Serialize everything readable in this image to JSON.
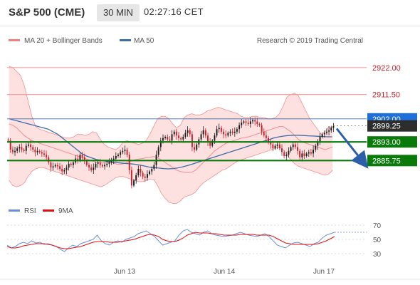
{
  "header": {
    "title": "S&P 500 (CME)",
    "timeframe": "30 MIN",
    "time": "02:27:16 CET"
  },
  "legend": {
    "bollinger": "MA 20 + Bollinger Bands",
    "ma50": "MA 50",
    "copyright": "Research © 2019 Trading Central",
    "rsi": "RSI",
    "rsi_ma": "9MA"
  },
  "colors": {
    "up": "#1a1a1a",
    "down": "#c8212b",
    "bollinger": "#f08080",
    "band_fill": "#fde0e0",
    "ma50": "#3d6ca8",
    "support_line": "#0a7a0a",
    "resistance_line": "#f2a0a0",
    "current_price_bg": "#2d2d2d",
    "pivot_bg": "#1e6fd9",
    "arrow": "#2c5fa8",
    "rsi_line": "#6b8fd6",
    "rsi_ma_line": "#e01010"
  },
  "chart_data": [
    {
      "type": "candlestick",
      "y_range": [
        2870,
        2930
      ],
      "x_ticks": [
        "Jun 13",
        "Jun 14",
        "Jun 17"
      ],
      "price_levels": [
        {
          "label": "2922.00",
          "value": 2922.0,
          "kind": "resistance"
        },
        {
          "label": "2911.50",
          "value": 2911.5,
          "kind": "resistance"
        },
        {
          "label": "2902.00",
          "value": 2902.0,
          "kind": "pivot"
        },
        {
          "label": "2899.25",
          "value": 2899.25,
          "kind": "last"
        },
        {
          "label": "2893.00",
          "value": 2893.0,
          "kind": "support"
        },
        {
          "label": "2885.75",
          "value": 2885.75,
          "kind": "support"
        }
      ],
      "closes": [
        2893.5,
        2890.0,
        2889.0,
        2889.5,
        2890.5,
        2891.0,
        2890.0,
        2889.5,
        2891.5,
        2892.0,
        2891.0,
        2890.0,
        2889.0,
        2889.5,
        2889.0,
        2888.5,
        2888.0,
        2887.0,
        2885.0,
        2883.0,
        2883.5,
        2884.0,
        2883.5,
        2882.5,
        2881.5,
        2882.0,
        2883.0,
        2884.5,
        2884.0,
        2885.0,
        2886.5,
        2886.0,
        2888.0,
        2887.0,
        2885.5,
        2884.0,
        2883.0,
        2882.0,
        2883.0,
        2884.5,
        2885.0,
        2884.0,
        2883.5,
        2884.0,
        2884.5,
        2885.0,
        2886.0,
        2886.5,
        2887.5,
        2888.0,
        2889.0,
        2889.5,
        2890.0,
        2888.0,
        2882.0,
        2876.0,
        2878.0,
        2880.0,
        2882.5,
        2881.0,
        2879.5,
        2879.0,
        2880.5,
        2881.5,
        2882.5,
        2884.0,
        2888.0,
        2891.0,
        2893.5,
        2894.5,
        2895.0,
        2894.0,
        2893.5,
        2896.0,
        2897.0,
        2895.5,
        2894.5,
        2894.0,
        2895.0,
        2896.5,
        2897.5,
        2896.0,
        2891.0,
        2890.0,
        2892.0,
        2894.0,
        2896.0,
        2897.5,
        2895.5,
        2893.0,
        2891.5,
        2893.5,
        2895.5,
        2898.0,
        2898.5,
        2897.0,
        2896.0,
        2895.5,
        2896.5,
        2897.0,
        2896.5,
        2897.0,
        2898.0,
        2899.5,
        2900.5,
        2901.0,
        2900.5,
        2900.0,
        2901.0,
        2901.5,
        2901.0,
        2900.0,
        2899.5,
        2897.0,
        2895.5,
        2894.5,
        2893.0,
        2892.0,
        2890.5,
        2891.5,
        2892.0,
        2890.5,
        2889.0,
        2887.5,
        2888.0,
        2889.5,
        2891.0,
        2892.0,
        2891.0,
        2889.5,
        2887.0,
        2888.5,
        2887.5,
        2888.5,
        2889.0,
        2888.5,
        2890.0,
        2891.5,
        2893.0,
        2895.0,
        2896.0,
        2896.5,
        2897.0,
        2897.5,
        2898.5,
        2899.25
      ],
      "bollinger": {
        "upper": [
          2922.5,
          2922.0,
          2920.5,
          2919.0,
          2915.0,
          2909.0,
          2903.0,
          2899.0,
          2898.0,
          2897.5,
          2897.0,
          2896.5,
          2896.0,
          2895.5,
          2895.0,
          2894.5,
          2894.5,
          2895.0,
          2896.0,
          2896.0,
          2895.5,
          2896.0,
          2897.0,
          2896.5,
          2894.0,
          2892.0,
          2891.0,
          2890.5,
          2890.0,
          2891.0,
          2893.0,
          2893.5,
          2893.0,
          2892.5,
          2892.0,
          2892.5,
          2893.5,
          2896.0,
          2899.0,
          2902.0,
          2903.0,
          2903.0,
          2902.0,
          2900.0,
          2898.5,
          2899.5,
          2902.5,
          2903.5,
          2904.0,
          2903.5,
          2903.5,
          2904.0,
          2905.0,
          2905.5,
          2906.0,
          2906.5,
          2906.0,
          2905.5,
          2905.0,
          2904.5,
          2904.0,
          2903.0,
          2902.5,
          2902.5,
          2903.0,
          2903.0,
          2902.5,
          2902.5,
          2902.0,
          2902.0,
          2902.5,
          2904.0,
          2907.0,
          2910.5,
          2911.5,
          2912.0,
          2911.0,
          2908.0,
          2905.0,
          2902.0,
          2900.0,
          2898.0,
          2896.0,
          2897.0,
          2899.0,
          2898.5
        ],
        "middle": [
          2900.0,
          2899.5,
          2898.5,
          2897.0,
          2895.5,
          2894.5,
          2893.5,
          2893.0,
          2892.5,
          2892.0,
          2891.5,
          2891.0,
          2890.5,
          2890.0,
          2889.5,
          2889.0,
          2888.5,
          2888.0,
          2887.5,
          2887.0,
          2886.5,
          2886.0,
          2885.5,
          2885.0,
          2884.8,
          2885.0,
          2885.2,
          2885.0,
          2884.5,
          2884.2,
          2884.5,
          2885.0,
          2885.5,
          2886.0,
          2886.3,
          2886.5,
          2886.8,
          2887.0,
          2887.3,
          2886.8,
          2886.0,
          2885.0,
          2884.0,
          2883.0,
          2882.0,
          2881.5,
          2881.2,
          2881.0,
          2881.2,
          2882.0,
          2883.5,
          2885.0,
          2886.5,
          2888.0,
          2889.5,
          2890.5,
          2891.5,
          2892.5,
          2893.0,
          2893.5,
          2894.0,
          2894.5,
          2894.8,
          2895.0,
          2895.5,
          2896.0,
          2896.5,
          2897.0,
          2897.5,
          2898.0,
          2898.5,
          2899.0,
          2899.0,
          2898.0,
          2897.0,
          2895.5,
          2894.0,
          2893.0,
          2892.5,
          2892.0,
          2891.5,
          2891.0,
          2890.5,
          2890.0,
          2890.5,
          2891.0
        ],
        "lower": [
          2878.0,
          2876.0,
          2875.5,
          2876.0,
          2877.0,
          2879.5,
          2881.5,
          2882.5,
          2883.0,
          2883.0,
          2882.5,
          2882.0,
          2881.5,
          2881.0,
          2880.5,
          2880.0,
          2879.5,
          2879.0,
          2878.5,
          2878.0,
          2877.5,
          2877.0,
          2876.5,
          2876.0,
          2875.5,
          2876.0,
          2877.0,
          2878.0,
          2879.0,
          2879.5,
          2879.5,
          2879.0,
          2878.5,
          2878.0,
          2877.5,
          2877.5,
          2878.0,
          2878.5,
          2878.5,
          2876.0,
          2873.0,
          2871.0,
          2869.5,
          2869.0,
          2869.0,
          2870.0,
          2871.5,
          2872.0,
          2872.5,
          2873.5,
          2875.5,
          2877.0,
          2878.0,
          2879.0,
          2880.0,
          2881.0,
          2882.0,
          2882.5,
          2883.5,
          2884.5,
          2885.5,
          2886.0,
          2886.5,
          2887.0,
          2887.5,
          2888.0,
          2888.5,
          2889.0,
          2889.5,
          2890.0,
          2890.5,
          2891.0,
          2890.0,
          2888.0,
          2886.0,
          2884.5,
          2883.5,
          2883.0,
          2882.5,
          2882.0,
          2881.5,
          2881.0,
          2880.5,
          2880.0,
          2880.5,
          2882.0
        ]
      },
      "ma50": [
        2902.0,
        2901.5,
        2901.0,
        2900.5,
        2900.0,
        2899.5,
        2899.0,
        2898.5,
        2898.0,
        2897.0,
        2896.0,
        2894.5,
        2893.0,
        2891.5,
        2890.0,
        2888.5,
        2887.5,
        2886.8,
        2886.2,
        2885.8,
        2885.5,
        2885.2,
        2885.0,
        2884.8,
        2884.6,
        2884.5,
        2884.3,
        2884.0,
        2883.6,
        2883.2,
        2883.0,
        2882.8,
        2882.6,
        2882.5,
        2882.6,
        2882.9,
        2883.3,
        2883.8,
        2884.4,
        2885.0,
        2885.6,
        2886.2,
        2886.8,
        2887.4,
        2888.0,
        2888.6,
        2889.2,
        2889.8,
        2890.4,
        2891.0,
        2891.6,
        2892.2,
        2892.8,
        2893.4,
        2894.0,
        2894.6,
        2895.0,
        2895.3,
        2895.5,
        2895.6,
        2895.6,
        2895.5,
        2895.4,
        2895.3,
        2895.2,
        2895.1,
        2895.0,
        2895.0
      ]
    },
    {
      "type": "line",
      "y_range": [
        20,
        80
      ],
      "y_ticks": [
        30,
        50,
        70
      ],
      "series": [
        {
          "name": "RSI",
          "values": [
            42,
            38,
            40,
            44,
            46,
            44,
            48,
            45,
            46,
            43,
            44,
            42,
            40,
            36,
            33,
            38,
            42,
            40,
            44,
            46,
            48,
            50,
            56,
            48,
            44,
            42,
            46,
            48,
            46,
            50,
            52,
            54,
            58,
            60,
            62,
            58,
            54,
            48,
            42,
            44,
            46,
            48,
            56,
            62,
            64,
            60,
            58,
            56,
            60,
            62,
            58,
            56,
            55,
            54,
            55,
            56,
            58,
            60,
            58,
            56,
            55,
            54,
            56,
            58,
            54,
            48,
            42,
            40,
            38,
            42,
            45,
            46,
            44,
            42,
            40,
            44,
            46,
            52,
            56,
            58,
            60
          ]
        },
        {
          "name": "9MA",
          "values": [
            40,
            38,
            38,
            39,
            41,
            42,
            43,
            44,
            44,
            44,
            43,
            42,
            40,
            38,
            37,
            37,
            38,
            39,
            40,
            42,
            44,
            46,
            47,
            47,
            47,
            46,
            46,
            46,
            47,
            48,
            49,
            50,
            52,
            54,
            56,
            57,
            56,
            54,
            50,
            48,
            47,
            47,
            49,
            52,
            56,
            58,
            60,
            59,
            59,
            59,
            58,
            58,
            57,
            56,
            56,
            56,
            56,
            57,
            57,
            57,
            57,
            56,
            56,
            56,
            56,
            54,
            51,
            48,
            45,
            44,
            43,
            43,
            43,
            43,
            43,
            43,
            44,
            46,
            48,
            51,
            54
          ]
        }
      ]
    }
  ]
}
